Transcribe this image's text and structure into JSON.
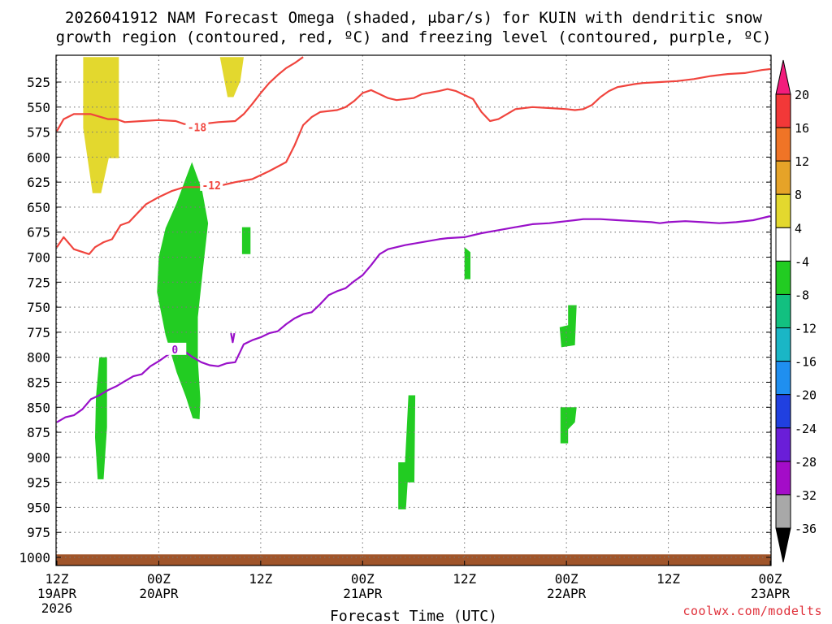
{
  "title": {
    "line1": "2026041912 NAM Forecast Omega (shaded, μbar/s) for KUIN with dendritic snow",
    "line2": "growth region (contoured, red, ºC) and freezing level (contoured, purple, ºC)"
  },
  "xlabel": "Forecast Time (UTC)",
  "credit": "coolwx.com/modelts",
  "chart_data": {
    "type": "time-height",
    "x_unit": "hours since 2026-04-19 12Z",
    "xlim": [
      0,
      84
    ],
    "x_ticks": [
      {
        "x": 0,
        "line1": "12Z",
        "line2": "19APR",
        "line3": "2026"
      },
      {
        "x": 12,
        "line1": "00Z",
        "line2": "20APR",
        "line3": ""
      },
      {
        "x": 24,
        "line1": "12Z",
        "line2": "",
        "line3": ""
      },
      {
        "x": 36,
        "line1": "00Z",
        "line2": "21APR",
        "line3": ""
      },
      {
        "x": 48,
        "line1": "12Z",
        "line2": "",
        "line3": ""
      },
      {
        "x": 60,
        "line1": "00Z",
        "line2": "22APR",
        "line3": ""
      },
      {
        "x": 72,
        "line1": "12Z",
        "line2": "",
        "line3": ""
      },
      {
        "x": 84,
        "line1": "00Z",
        "line2": "23APR",
        "line3": ""
      }
    ],
    "y_unit": "hPa",
    "y_ticks": [
      525,
      550,
      575,
      600,
      625,
      650,
      675,
      700,
      725,
      750,
      775,
      800,
      825,
      850,
      875,
      900,
      925,
      950,
      975,
      1000
    ],
    "grid": true,
    "omega_fill_regions": [
      {
        "category": "4 to 8",
        "color": "#e3d82e",
        "points": [
          [
            3.1,
            500
          ],
          [
            7.3,
            500
          ],
          [
            7.3,
            601
          ],
          [
            6.1,
            601
          ],
          [
            5.2,
            636
          ],
          [
            4.2,
            636
          ],
          [
            3.1,
            571
          ]
        ]
      },
      {
        "category": "4 to 8",
        "color": "#e3d82e",
        "points": [
          [
            19.2,
            500
          ],
          [
            22.0,
            500
          ],
          [
            21.6,
            524
          ],
          [
            20.8,
            540
          ],
          [
            20.1,
            540
          ]
        ]
      },
      {
        "category": "-8 to -4",
        "color": "#22cc22",
        "points": [
          [
            15.9,
            605
          ],
          [
            17.1,
            633
          ],
          [
            17.8,
            666
          ],
          [
            17.2,
            712
          ],
          [
            16.6,
            760
          ],
          [
            16.6,
            803
          ],
          [
            16.9,
            842
          ],
          [
            16.8,
            862
          ],
          [
            16.0,
            861
          ],
          [
            15.2,
            840
          ],
          [
            14.1,
            815
          ],
          [
            12.8,
            778
          ],
          [
            11.8,
            735
          ],
          [
            12.0,
            700
          ],
          [
            12.8,
            671
          ],
          [
            14.1,
            646
          ],
          [
            15.1,
            623
          ]
        ]
      },
      {
        "category": "-8 to -4",
        "color": "#22cc22",
        "points": [
          [
            21.8,
            670
          ],
          [
            22.8,
            670
          ],
          [
            22.8,
            697
          ],
          [
            21.8,
            697
          ]
        ]
      },
      {
        "category": "-8 to -4",
        "color": "#22cc22",
        "points": [
          [
            5.0,
            800
          ],
          [
            5.9,
            800
          ],
          [
            5.9,
            870
          ],
          [
            5.5,
            922
          ],
          [
            4.8,
            922
          ],
          [
            4.5,
            880
          ],
          [
            4.6,
            840
          ]
        ]
      },
      {
        "category": "-8 to -4",
        "color": "#22cc22",
        "points": [
          [
            41.4,
            838
          ],
          [
            42.2,
            838
          ],
          [
            42.1,
            925
          ],
          [
            41.3,
            925
          ],
          [
            41.1,
            952
          ],
          [
            40.2,
            952
          ],
          [
            40.2,
            905
          ],
          [
            41.0,
            905
          ]
        ]
      },
      {
        "category": "-8 to -4",
        "color": "#22cc22",
        "points": [
          [
            48.0,
            690
          ],
          [
            48.7,
            695
          ],
          [
            48.7,
            722
          ],
          [
            48.0,
            722
          ]
        ]
      },
      {
        "category": "-8 to -4",
        "color": "#22cc22",
        "points": [
          [
            60.2,
            748
          ],
          [
            61.2,
            748
          ],
          [
            61.0,
            788
          ],
          [
            59.4,
            790
          ],
          [
            59.2,
            770
          ],
          [
            60.2,
            768
          ]
        ]
      },
      {
        "category": "-8 to -4",
        "color": "#22cc22",
        "points": [
          [
            59.3,
            850
          ],
          [
            61.2,
            850
          ],
          [
            61.0,
            865
          ],
          [
            60.2,
            872
          ],
          [
            60.2,
            886
          ],
          [
            59.3,
            886
          ]
        ]
      }
    ],
    "terrain": {
      "color": "#a0552a",
      "top_hPa": 997,
      "bottom_hPa": 1010
    },
    "contours": [
      {
        "label": "-18",
        "color": "#f0443d",
        "label_at": [
          16.5,
          570
        ],
        "points": [
          [
            0,
            574
          ],
          [
            0.8,
            562
          ],
          [
            2,
            557
          ],
          [
            4,
            557
          ],
          [
            6,
            562
          ],
          [
            7,
            562
          ],
          [
            8,
            565
          ],
          [
            10,
            564
          ],
          [
            12,
            563
          ],
          [
            14,
            564
          ],
          [
            15,
            567
          ],
          [
            17,
            567
          ],
          [
            19,
            565
          ],
          [
            21,
            564
          ],
          [
            22,
            557
          ],
          [
            23,
            547
          ],
          [
            24,
            536
          ],
          [
            25,
            526
          ],
          [
            26,
            518
          ],
          [
            27,
            511
          ],
          [
            28,
            506
          ],
          [
            29,
            500
          ]
        ]
      },
      {
        "label": "-12",
        "color": "#f0443d",
        "label_at": [
          18.2,
          628
        ],
        "points": [
          [
            0,
            690
          ],
          [
            0.8,
            680
          ],
          [
            2,
            692
          ],
          [
            3.8,
            697
          ],
          [
            4.5,
            690
          ],
          [
            5.5,
            685
          ],
          [
            6.5,
            682
          ],
          [
            7.5,
            668
          ],
          [
            8.5,
            665
          ],
          [
            9.5,
            656
          ],
          [
            10.5,
            647
          ],
          [
            12,
            640
          ],
          [
            13.5,
            634
          ],
          [
            15,
            630
          ],
          [
            17,
            630
          ],
          [
            19,
            629
          ],
          [
            21,
            625
          ],
          [
            23,
            622
          ],
          [
            25,
            614
          ],
          [
            27,
            605
          ],
          [
            28,
            588
          ],
          [
            29,
            568
          ],
          [
            30,
            560
          ],
          [
            31,
            555
          ],
          [
            33,
            553
          ],
          [
            34,
            550
          ],
          [
            35,
            544
          ],
          [
            36,
            536
          ],
          [
            37,
            533
          ],
          [
            39,
            541
          ],
          [
            40,
            543
          ],
          [
            42,
            541
          ],
          [
            43,
            537
          ],
          [
            45,
            534
          ],
          [
            46,
            532
          ],
          [
            47,
            534
          ],
          [
            48,
            538
          ],
          [
            49,
            542
          ],
          [
            50,
            555
          ],
          [
            51,
            564
          ],
          [
            52,
            562
          ],
          [
            53,
            557
          ],
          [
            54,
            552
          ],
          [
            56,
            550
          ],
          [
            58,
            551
          ],
          [
            60,
            552
          ],
          [
            61,
            553
          ],
          [
            62,
            552
          ],
          [
            63,
            548
          ],
          [
            64,
            540
          ],
          [
            65,
            534
          ],
          [
            66,
            530
          ],
          [
            68,
            527
          ],
          [
            69,
            526
          ],
          [
            71,
            525
          ],
          [
            73,
            524
          ],
          [
            75,
            522
          ],
          [
            77,
            519
          ],
          [
            79,
            517
          ],
          [
            81,
            516
          ],
          [
            83,
            513
          ],
          [
            84,
            512
          ]
        ]
      },
      {
        "label": "0",
        "color": "#9910c9",
        "label_at": [
          13.9,
          792
        ],
        "points": [
          [
            0,
            865
          ],
          [
            1,
            860
          ],
          [
            2,
            858
          ],
          [
            3,
            852
          ],
          [
            4,
            842
          ],
          [
            5,
            838
          ],
          [
            6,
            833
          ],
          [
            7,
            829
          ],
          [
            8,
            824
          ],
          [
            9,
            819
          ],
          [
            10,
            817
          ],
          [
            11,
            809
          ],
          [
            12,
            804
          ],
          [
            13,
            798
          ],
          [
            14,
            793
          ],
          [
            15,
            794
          ],
          [
            16,
            800
          ],
          [
            17,
            805
          ],
          [
            18,
            808
          ],
          [
            19,
            809
          ],
          [
            20,
            806
          ],
          [
            21,
            805
          ],
          [
            22,
            787
          ],
          [
            23,
            783
          ],
          [
            24,
            780
          ],
          [
            25,
            776
          ],
          [
            26,
            774
          ],
          [
            27,
            767
          ],
          [
            28,
            761
          ],
          [
            29,
            757
          ],
          [
            30,
            755
          ],
          [
            31,
            747
          ],
          [
            32,
            738
          ],
          [
            33,
            734
          ],
          [
            34,
            731
          ],
          [
            35,
            724
          ],
          [
            36,
            718
          ],
          [
            37,
            708
          ],
          [
            38,
            697
          ],
          [
            39,
            692
          ],
          [
            41,
            688
          ],
          [
            43,
            685
          ],
          [
            45,
            682
          ],
          [
            46,
            681
          ],
          [
            48,
            680
          ],
          [
            50,
            676
          ],
          [
            52,
            673
          ],
          [
            54,
            670
          ],
          [
            56,
            667
          ],
          [
            58,
            666
          ],
          [
            59,
            665
          ],
          [
            60,
            664
          ],
          [
            61,
            663
          ],
          [
            62,
            662
          ],
          [
            64,
            662
          ],
          [
            66,
            663
          ],
          [
            68,
            664
          ],
          [
            70,
            665
          ],
          [
            71,
            666
          ],
          [
            72,
            665
          ],
          [
            74,
            664
          ],
          [
            76,
            665
          ],
          [
            78,
            666
          ],
          [
            80,
            665
          ],
          [
            82,
            663
          ],
          [
            84,
            659
          ]
        ]
      },
      {
        "label": "",
        "color": "#9910c9",
        "label_at": null,
        "points": [
          [
            20.5,
            776
          ],
          [
            20.7,
            785
          ],
          [
            20.9,
            776
          ]
        ]
      }
    ],
    "colorbar": {
      "ticks": [
        "20",
        "16",
        "12",
        "8",
        "4",
        "-4",
        "-8",
        "-12",
        "-16",
        "-20",
        "-24",
        "-28",
        "-32",
        "-36"
      ],
      "top_arrow_color": "#f21c7c",
      "bottom_arrow_color": "#000000",
      "bins": [
        {
          "from": 20,
          "to": 16,
          "color": "#f23838"
        },
        {
          "from": 16,
          "to": 12,
          "color": "#f07426"
        },
        {
          "from": 12,
          "to": 8,
          "color": "#e6a328"
        },
        {
          "from": 8,
          "to": 4,
          "color": "#e3d82e"
        },
        {
          "from": 4,
          "to": -4,
          "color": "#ffffff"
        },
        {
          "from": -4,
          "to": -8,
          "color": "#22cc22"
        },
        {
          "from": -8,
          "to": -12,
          "color": "#12c080"
        },
        {
          "from": -12,
          "to": -16,
          "color": "#1ab6c6"
        },
        {
          "from": -16,
          "to": -20,
          "color": "#1f8ff0"
        },
        {
          "from": -20,
          "to": -24,
          "color": "#2040e0"
        },
        {
          "from": -24,
          "to": -28,
          "color": "#6a1ed8"
        },
        {
          "from": -28,
          "to": -32,
          "color": "#a40cc8"
        },
        {
          "from": -32,
          "to": -36,
          "color": "#a8a8a8"
        }
      ]
    }
  }
}
